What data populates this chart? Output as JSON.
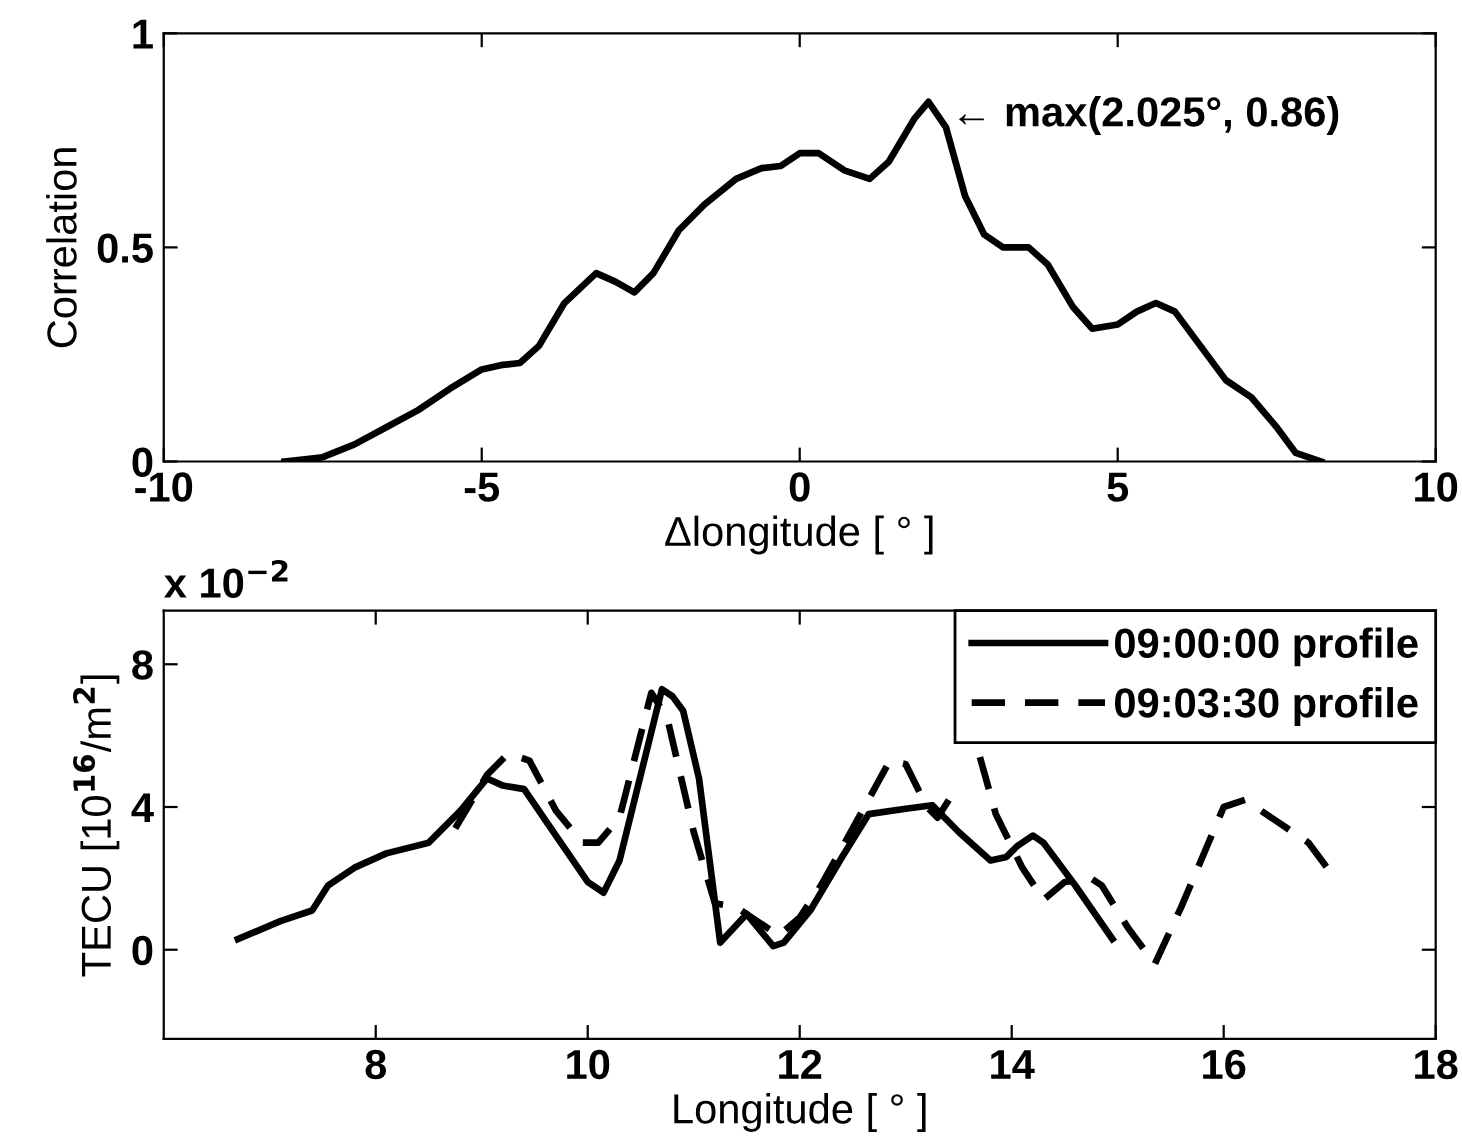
{
  "chart_data": [
    {
      "type": "line",
      "xlabel": "Δlongitude [ ° ]",
      "ylabel": "Correlation",
      "xlim": [
        -10,
        10
      ],
      "xticks": [
        -10,
        -5,
        0,
        5,
        10
      ],
      "ylim": [
        0,
        1
      ],
      "yticks": [
        0,
        0.5,
        1
      ],
      "grid": false,
      "legend": false,
      "annotations": [
        {
          "text": "← max(2.025°, 0.86)",
          "x": 2.025,
          "y": 0.86
        }
      ],
      "series": [
        {
          "color": "#000000",
          "line_style": "solid",
          "x": [
            -8.1,
            -7.5,
            -7,
            -6.5,
            -6,
            -5.5,
            -5,
            -4.7,
            -4.4,
            -4.1,
            -3.7,
            -3.2,
            -2.9,
            -2.6,
            -2.3,
            -1.9,
            -1.5,
            -1,
            -0.6,
            -0.3,
            0,
            0.3,
            0.7,
            1.1,
            1.4,
            1.8,
            2.025,
            2.3,
            2.6,
            2.9,
            3.2,
            3.6,
            3.9,
            4.3,
            4.6,
            5,
            5.3,
            5.6,
            5.9,
            6.3,
            6.7,
            7.1,
            7.5,
            7.8,
            8.2
          ],
          "values": [
            0,
            0.01,
            0.04,
            0.08,
            0.12,
            0.17,
            0.215,
            0.225,
            0.23,
            0.27,
            0.37,
            0.44,
            0.42,
            0.395,
            0.44,
            0.54,
            0.6,
            0.66,
            0.685,
            0.69,
            0.72,
            0.72,
            0.68,
            0.66,
            0.7,
            0.8,
            0.84,
            0.78,
            0.62,
            0.53,
            0.5,
            0.5,
            0.46,
            0.36,
            0.31,
            0.32,
            0.35,
            0.37,
            0.35,
            0.27,
            0.19,
            0.15,
            0.08,
            0.02,
            0
          ]
        }
      ]
    },
    {
      "type": "line",
      "xlabel": "Longitude [ ° ]",
      "ylabel": "TECU [10$^{16}$/m$^{2}$]",
      "xlim": [
        6,
        18
      ],
      "xticks": [
        8,
        10,
        12,
        14,
        16,
        18
      ],
      "ylim": [
        -2.5,
        9.5
      ],
      "yticks": [
        0,
        4,
        8
      ],
      "grid": false,
      "legend": "top right",
      "annotations": [
        "x 10$^{−2}$"
      ],
      "series": [
        {
          "name": "09:00:00 profile",
          "color": "#000000",
          "line_style": "solid",
          "x": [
            6.7,
            7.1,
            7.4,
            7.55,
            7.8,
            8.1,
            8.5,
            8.8,
            9.05,
            9.2,
            9.4,
            9.7,
            10,
            10.15,
            10.3,
            10.7,
            10.8,
            10.9,
            11.05,
            11.25,
            11.5,
            11.75,
            11.85,
            12.1,
            12.4,
            12.65,
            13.0,
            13.25,
            13.5,
            13.8,
            13.95,
            14.05,
            14.2,
            14.3,
            14.6,
            14.95
          ],
          "values": [
            0.3,
            0.8,
            1.1,
            1.8,
            2.3,
            2.7,
            3.0,
            3.9,
            4.8,
            4.6,
            4.5,
            3.2,
            1.9,
            1.6,
            2.5,
            7.3,
            7.1,
            6.7,
            4.8,
            0.2,
            1.0,
            0.1,
            0.2,
            1.1,
            2.6,
            3.8,
            3.95,
            4.05,
            3.3,
            2.5,
            2.6,
            2.9,
            3.2,
            3.0,
            1.8,
            0.3
          ]
        },
        {
          "name": "09:03:30 profile",
          "color": "#000000",
          "line_style": "dashed",
          "x": [
            8.75,
            9.05,
            9.25,
            9.45,
            9.7,
            9.95,
            10.1,
            10.3,
            10.6,
            10.75,
            11.0,
            11.2,
            11.4,
            11.6,
            11.8,
            12.0,
            12.2,
            12.5,
            12.85,
            13.0,
            13.2,
            13.3,
            13.45,
            13.6,
            13.7,
            13.85,
            14.1,
            14.3,
            14.5,
            14.75,
            14.85,
            15.1,
            15.35,
            15.6,
            16.0,
            16.2,
            16.5,
            16.8,
            17.0
          ],
          "values": [
            3.4,
            4.9,
            5.5,
            5.3,
            3.9,
            3.0,
            3.0,
            3.7,
            7.2,
            6.5,
            3.3,
            1.3,
            1.2,
            0.8,
            0.4,
            0.9,
            1.8,
            3.4,
            5.3,
            5.2,
            4.0,
            3.7,
            4.4,
            null,
            5.4,
            3.8,
            2.3,
            1.4,
            1.9,
            2.0,
            1.8,
            0.6,
            -0.4,
            1.2,
            4.0,
            4.2,
            3.6,
            3.0,
            2.2
          ]
        }
      ]
    }
  ]
}
